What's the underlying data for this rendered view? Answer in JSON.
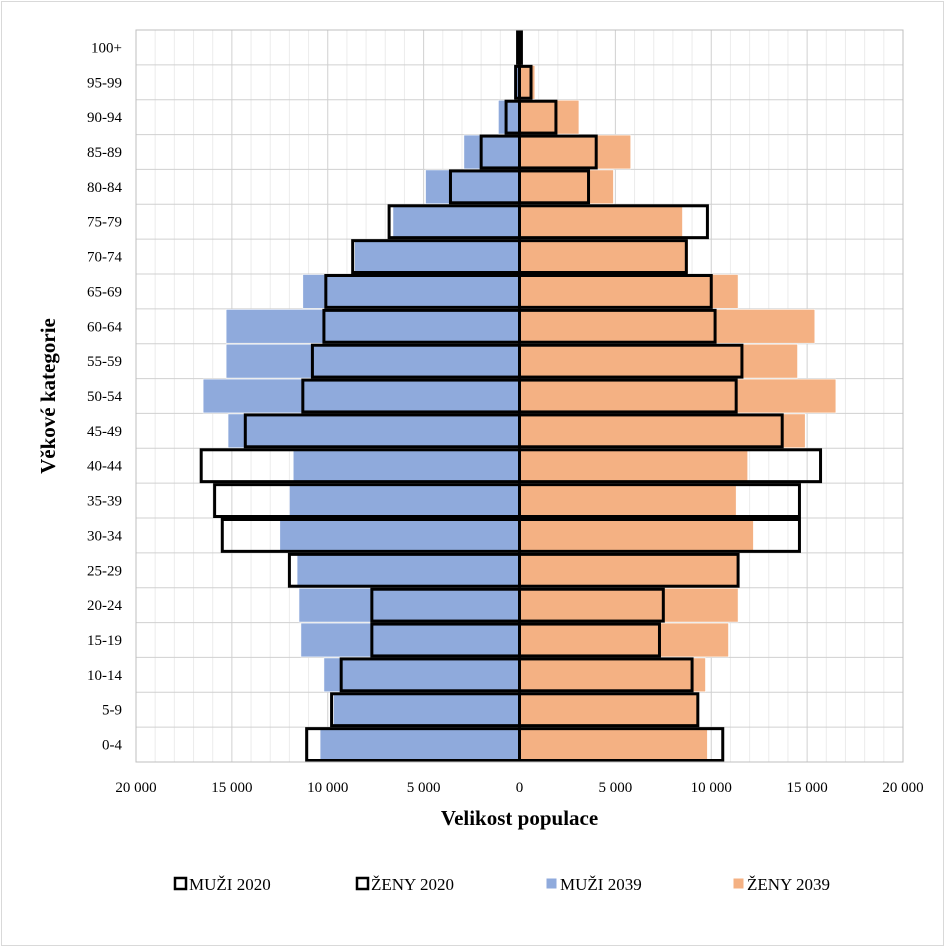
{
  "chart_data": {
    "type": "bar",
    "orientation": "horizontal-population-pyramid",
    "xlabel": "Velikost populace",
    "ylabel": "Věkové kategorie",
    "xlim": [
      -20000,
      20000
    ],
    "xticks": [
      -20000,
      -15000,
      -10000,
      -5000,
      0,
      5000,
      10000,
      15000,
      20000
    ],
    "xtick_labels": [
      "20 000",
      "15 000",
      "10 000",
      "5 000",
      "0",
      "5 000",
      "10 000",
      "15 000",
      "20 000"
    ],
    "categories": [
      "0-4",
      "5-9",
      "10-14",
      "15-19",
      "20-24",
      "25-29",
      "30-34",
      "35-39",
      "40-44",
      "45-49",
      "50-54",
      "55-59",
      "60-64",
      "65-69",
      "70-74",
      "75-79",
      "80-84",
      "85-89",
      "90-94",
      "95-99",
      "100+"
    ],
    "series": [
      {
        "name": "MUŽI 2020",
        "style": "outline",
        "color": "#000000",
        "side": "left",
        "values": [
          11100,
          9800,
          9300,
          7700,
          7700,
          12000,
          15500,
          15900,
          16600,
          14300,
          11300,
          10800,
          10200,
          10100,
          8700,
          6800,
          3600,
          2000,
          700,
          200,
          100
        ]
      },
      {
        "name": "ŽENY 2020",
        "style": "outline",
        "color": "#000000",
        "side": "right",
        "values": [
          10600,
          9300,
          9000,
          7300,
          7500,
          11400,
          14600,
          14600,
          15700,
          13700,
          11300,
          11600,
          10200,
          10000,
          8700,
          9800,
          3600,
          4000,
          1900,
          600,
          100
        ]
      },
      {
        "name": "MUŽI 2039",
        "style": "fill",
        "color": "#8faadc",
        "side": "left",
        "values": [
          10400,
          9700,
          10200,
          11400,
          11500,
          11600,
          12500,
          12000,
          11800,
          15200,
          16500,
          15300,
          15300,
          11300,
          8600,
          6600,
          4900,
          2900,
          1100,
          300,
          0
        ]
      },
      {
        "name": "ŽENY 2039",
        "style": "fill",
        "color": "#f4b183",
        "side": "right",
        "values": [
          9800,
          9300,
          9700,
          10900,
          11400,
          11400,
          12200,
          11300,
          11900,
          14900,
          16500,
          14500,
          15400,
          11400,
          8800,
          8500,
          4900,
          5800,
          3100,
          800,
          0
        ]
      }
    ],
    "legend": [
      "MUŽI 2020",
      "ŽENY 2020",
      "MUŽI 2039",
      "ŽENY 2039"
    ],
    "legend_position": "bottom",
    "grid": true
  }
}
